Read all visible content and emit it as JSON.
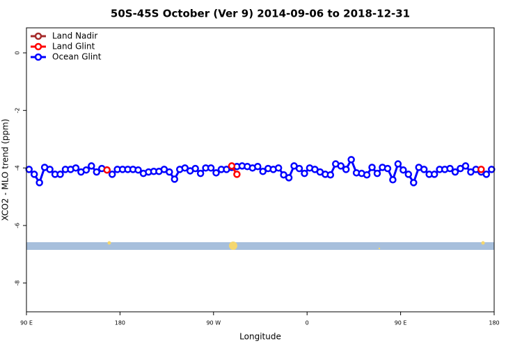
{
  "chart_data": {
    "type": "line",
    "title": "50S-45S October (Ver 9)   2014-09-06 to 2018-12-31",
    "x_label": "Longitude",
    "y_label": "XCO2 - MLO trend (ppm)",
    "xlim": [
      90,
      540
    ],
    "xticks": [
      {
        "value": 90,
        "label": "90 E"
      },
      {
        "value": 180,
        "label": "180"
      },
      {
        "value": 270,
        "label": "90 W"
      },
      {
        "value": 360,
        "label": "0"
      },
      {
        "value": 450,
        "label": "90 E"
      },
      {
        "value": 540,
        "label": "180"
      }
    ],
    "ylim": [
      -9,
      0.87
    ],
    "yticks": [
      0,
      -2,
      -4,
      -6,
      -8
    ],
    "legend": "top-left",
    "x": [
      92.5,
      97.5,
      102.5,
      107.5,
      112.5,
      117.5,
      122.5,
      127.5,
      132.5,
      137.5,
      142.5,
      147.5,
      152.5,
      157.5,
      162.5,
      167.5,
      172.5,
      177.5,
      182.5,
      187.5,
      192.5,
      197.5,
      202.5,
      207.5,
      212.5,
      217.5,
      222.5,
      227.5,
      232.5,
      237.5,
      242.5,
      247.5,
      252.5,
      257.5,
      262.5,
      267.5,
      272.5,
      277.5,
      282.5,
      287.5,
      292.5,
      297.5,
      302.5,
      307.5,
      312.5,
      317.5,
      322.5,
      327.5,
      332.5,
      337.5,
      342.5,
      347.5,
      352.5,
      357.5,
      362.5,
      367.5,
      372.5,
      377.5,
      382.5,
      387.5,
      392.5,
      397.5,
      402.5,
      407.5,
      412.5,
      417.5,
      422.5,
      427.5,
      432.5,
      437.5,
      442.5,
      447.5,
      452.5,
      457.5,
      462.5,
      467.5,
      472.5,
      477.5,
      482.5,
      487.5,
      492.5,
      497.5,
      502.5,
      507.5,
      512.5,
      517.5,
      522.5,
      527.5,
      532.5,
      537.5
    ],
    "series": [
      {
        "name": "Land Nadir",
        "color": "#a52a2a",
        "values": [
          null,
          null,
          null,
          null,
          null,
          null,
          null,
          null,
          null,
          null,
          null,
          null,
          null,
          null,
          null,
          null,
          null,
          null,
          null,
          null,
          null,
          null,
          null,
          null,
          null,
          null,
          null,
          null,
          null,
          null,
          null,
          null,
          null,
          null,
          null,
          null,
          null,
          null,
          null,
          null,
          null,
          null,
          null,
          null,
          null,
          null,
          null,
          null,
          null,
          null,
          null,
          null,
          null,
          null,
          null,
          null,
          null,
          null,
          null,
          null,
          null,
          null,
          null,
          null,
          null,
          null,
          null,
          null,
          null,
          null,
          null,
          null,
          null,
          null,
          null,
          null,
          null,
          null,
          null,
          null,
          null,
          null,
          null,
          null,
          null,
          null,
          null,
          null,
          null,
          null
        ]
      },
      {
        "name": "Land Glint",
        "color": "#ff0000",
        "values": [
          null,
          null,
          null,
          null,
          null,
          null,
          null,
          null,
          null,
          null,
          null,
          null,
          null,
          null,
          null,
          -4.07,
          null,
          null,
          null,
          null,
          null,
          null,
          null,
          null,
          null,
          null,
          null,
          null,
          null,
          null,
          null,
          null,
          null,
          null,
          null,
          null,
          null,
          null,
          null,
          -3.93,
          -4.22,
          null,
          null,
          null,
          null,
          null,
          null,
          null,
          null,
          null,
          null,
          null,
          null,
          null,
          null,
          null,
          null,
          null,
          null,
          null,
          null,
          null,
          null,
          null,
          null,
          null,
          null,
          null,
          null,
          null,
          null,
          null,
          null,
          null,
          null,
          null,
          null,
          null,
          null,
          null,
          null,
          null,
          null,
          null,
          null,
          null,
          null,
          -4.05,
          null,
          null
        ]
      },
      {
        "name": "Ocean Glint",
        "color": "#0000ff",
        "values": [
          -4.05,
          -4.22,
          -4.51,
          -3.98,
          -4.05,
          -4.22,
          -4.22,
          -4.05,
          -4.05,
          -4.0,
          -4.14,
          -4.07,
          -3.93,
          -4.14,
          -4.02,
          -4.07,
          -4.22,
          -4.05,
          -4.05,
          -4.05,
          -4.05,
          -4.07,
          -4.19,
          -4.14,
          -4.12,
          -4.12,
          -4.05,
          -4.14,
          -4.39,
          -4.05,
          -4.0,
          -4.1,
          -4.02,
          -4.19,
          -4.0,
          -4.0,
          -4.17,
          -4.05,
          -4.05,
          -3.98,
          -3.95,
          -3.93,
          -3.95,
          -4.0,
          -3.95,
          -4.12,
          -4.02,
          -4.05,
          -4.0,
          -4.24,
          -4.34,
          -3.93,
          -4.02,
          -4.19,
          -4.0,
          -4.05,
          -4.14,
          -4.22,
          -4.24,
          -3.86,
          -3.93,
          -4.05,
          -3.71,
          -4.17,
          -4.19,
          -4.24,
          -3.98,
          -4.19,
          -3.98,
          -4.02,
          -4.41,
          -3.86,
          -4.07,
          -4.22,
          -4.51,
          -3.98,
          -4.05,
          -4.22,
          -4.22,
          -4.05,
          -4.05,
          -4.02,
          -4.14,
          -4.02,
          -3.93,
          -4.14,
          -4.05,
          -4.14,
          -4.22,
          -4.05
        ]
      }
    ]
  }
}
